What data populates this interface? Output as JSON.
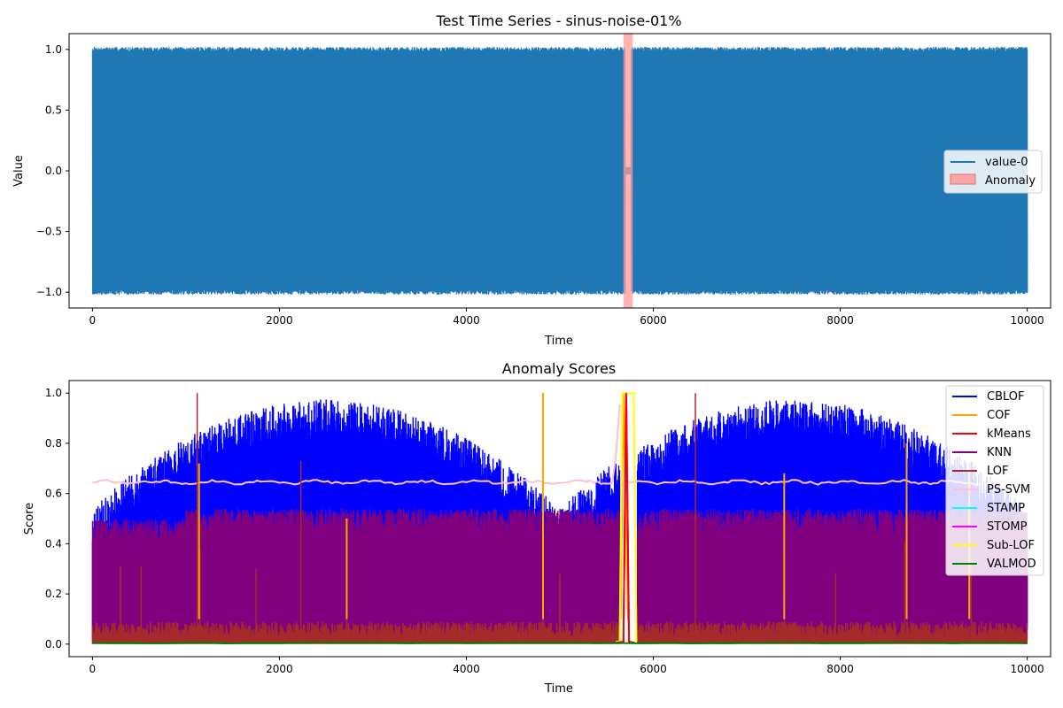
{
  "chart_data": [
    {
      "type": "line",
      "title": "Test Time Series - sinus-noise-01%",
      "xlabel": "Time",
      "ylabel": "Value",
      "xlim": [
        -250,
        10250
      ],
      "ylim": [
        -1.13,
        1.13
      ],
      "xticks": [
        0,
        2000,
        4000,
        6000,
        8000,
        10000
      ],
      "xtick_labels": [
        "0",
        "2000",
        "4000",
        "6000",
        "8000",
        "10000"
      ],
      "yticks": [
        -1.0,
        -0.5,
        0.0,
        0.5,
        1.0
      ],
      "ytick_labels": [
        "−1.0",
        "−0.5",
        "0.0",
        "0.5",
        "1.0"
      ],
      "legend_position": "right",
      "series": [
        {
          "name": "value-0",
          "color": "#1f77b4",
          "x_range": [
            0,
            10000
          ],
          "amplitude": 1.0,
          "description": "dense sinus with noise; flat near 0 around 5700-5750"
        }
      ],
      "anomaly_regions": [
        {
          "name": "Anomaly",
          "start": 5680,
          "end": 5780,
          "color": "#ff9999"
        }
      ],
      "legend": [
        "value-0",
        "Anomaly"
      ]
    },
    {
      "type": "line",
      "title": "Anomaly Scores",
      "xlabel": "Time",
      "ylabel": "Score",
      "xlim": [
        -250,
        10250
      ],
      "ylim": [
        -0.05,
        1.05
      ],
      "xticks": [
        0,
        2000,
        4000,
        6000,
        8000,
        10000
      ],
      "xtick_labels": [
        "0",
        "2000",
        "4000",
        "6000",
        "8000",
        "10000"
      ],
      "yticks": [
        0.0,
        0.2,
        0.4,
        0.6,
        0.8,
        1.0
      ],
      "ytick_labels": [
        "0.0",
        "0.2",
        "0.4",
        "0.6",
        "0.8",
        "1.0"
      ],
      "legend_position": "top-right",
      "series": [
        {
          "name": "CBLOF",
          "color": "#0000ff"
        },
        {
          "name": "COF",
          "color": "#ffa500"
        },
        {
          "name": "kMeans",
          "color": "#ff0000"
        },
        {
          "name": "KNN",
          "color": "#800080"
        },
        {
          "name": "LOF",
          "color": "#a52a2a"
        },
        {
          "name": "PS-SVM",
          "color": "#ffc0cb"
        },
        {
          "name": "STAMP",
          "color": "#00ffff"
        },
        {
          "name": "STOMP",
          "color": "#ff00ff"
        },
        {
          "name": "Sub-LOF",
          "color": "#ffff00"
        },
        {
          "name": "VALMOD",
          "color": "#008000"
        }
      ]
    }
  ]
}
